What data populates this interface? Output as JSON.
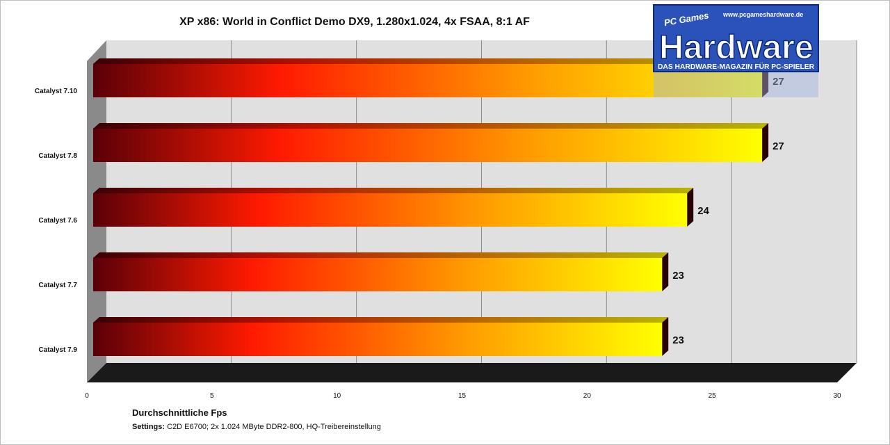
{
  "chart_data": {
    "type": "bar",
    "orientation": "horizontal",
    "title": "XP x86: World in Conflict Demo DX9, 1.280x1.024, 4x FSAA, 8:1 AF",
    "categories": [
      "Catalyst 7.10",
      "Catalyst 7.8",
      "Catalyst 7.6",
      "Catalyst 7.7",
      "Catalyst 7.9"
    ],
    "values": [
      27,
      27,
      24,
      23,
      23
    ],
    "data_labels": [
      "27",
      "27",
      "24",
      "23",
      "23"
    ],
    "xlabel": "Durchschnittliche  Fps",
    "xlim": [
      0,
      30
    ],
    "xticks": [
      0,
      5,
      10,
      15,
      20,
      25,
      30
    ],
    "grid": true,
    "legend": "none",
    "bar_gradient": [
      "#5a0008",
      "#ff1a00",
      "#ff9a00",
      "#ffff00"
    ],
    "colors": {
      "wall": "#e0e0e0",
      "floor": "#1a1a1a",
      "side_wall": "#8a8a8a"
    }
  },
  "footer": {
    "settings_label": "Settings:",
    "settings_text": " C2D E6700; 2x 1.024 MByte DDR2-800, HQ-Treibereinstellung"
  },
  "logo": {
    "brand_top": "PC Games",
    "brand_main": "Hardware",
    "url": "www.pcgameshardware.de",
    "tagline": "DAS HARDWARE-MAGAZIN FÜR PC-SPIELER"
  }
}
